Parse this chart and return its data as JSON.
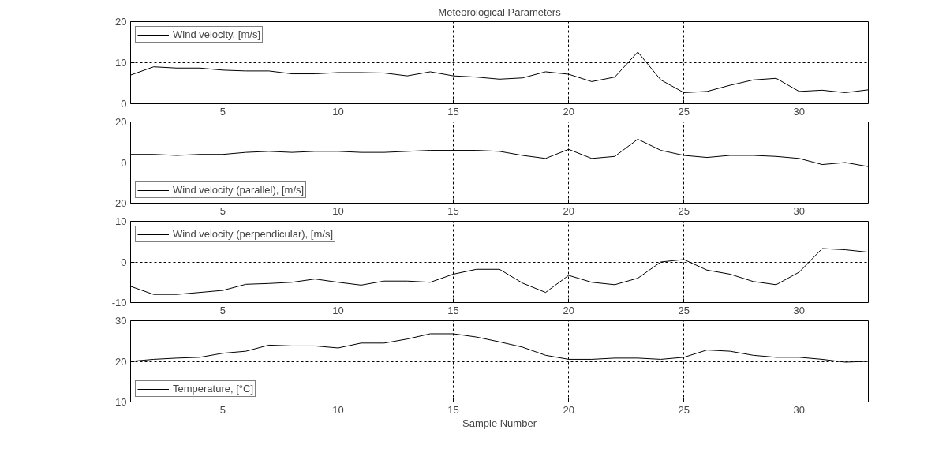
{
  "chart_data": [
    {
      "type": "line",
      "title": "Meteorological Parameters",
      "x": [
        1,
        2,
        3,
        4,
        5,
        6,
        7,
        8,
        9,
        10,
        11,
        12,
        13,
        14,
        15,
        16,
        17,
        18,
        19,
        20,
        21,
        22,
        23,
        24,
        25,
        26,
        27,
        28,
        29,
        30,
        31,
        32,
        33
      ],
      "xlim": [
        1,
        33
      ],
      "xticks": [
        5,
        10,
        15,
        20,
        25,
        30
      ],
      "ylim": [
        0,
        20
      ],
      "yticks": [
        0,
        10,
        20
      ],
      "grid": true,
      "legend": "top left",
      "series": [
        {
          "name": "Wind velocity, [m/s]",
          "color": "#000000",
          "values": [
            7,
            9,
            8.7,
            8.7,
            8.2,
            8,
            8,
            7.3,
            7.3,
            7.6,
            7.6,
            7.5,
            6.8,
            7.8,
            6.8,
            6.5,
            6,
            6.3,
            7.8,
            7.2,
            5.4,
            6.5,
            12.6,
            5.8,
            2.7,
            3,
            4.5,
            5.8,
            6.2,
            3,
            3.3,
            2.7,
            3.4
          ]
        }
      ]
    },
    {
      "type": "line",
      "x": [
        1,
        2,
        3,
        4,
        5,
        6,
        7,
        8,
        9,
        10,
        11,
        12,
        13,
        14,
        15,
        16,
        17,
        18,
        19,
        20,
        21,
        22,
        23,
        24,
        25,
        26,
        27,
        28,
        29,
        30,
        31,
        32,
        33
      ],
      "xlim": [
        1,
        33
      ],
      "xticks": [
        5,
        10,
        15,
        20,
        25,
        30
      ],
      "ylim": [
        -20,
        20
      ],
      "yticks": [
        -20,
        0,
        20
      ],
      "grid": true,
      "legend": "bottom left",
      "series": [
        {
          "name": "Wind velocity (parallel), [m/s]",
          "color": "#000000",
          "values": [
            4,
            4,
            3.5,
            4,
            4,
            5,
            5.5,
            5,
            5.5,
            5.5,
            5,
            5,
            5.5,
            6,
            6,
            6,
            5.5,
            3.5,
            2,
            6.5,
            2,
            3,
            11.5,
            6,
            3.5,
            2.5,
            3.5,
            3.5,
            3,
            2,
            -1,
            0,
            -2
          ]
        }
      ]
    },
    {
      "type": "line",
      "x": [
        1,
        2,
        3,
        4,
        5,
        6,
        7,
        8,
        9,
        10,
        11,
        12,
        13,
        14,
        15,
        16,
        17,
        18,
        19,
        20,
        21,
        22,
        23,
        24,
        25,
        26,
        27,
        28,
        29,
        30,
        31,
        32,
        33
      ],
      "xlim": [
        1,
        33
      ],
      "xticks": [
        5,
        10,
        15,
        20,
        25,
        30
      ],
      "ylim": [
        -10,
        10
      ],
      "yticks": [
        -10,
        0,
        10
      ],
      "grid": true,
      "legend": "top left",
      "series": [
        {
          "name": "Wind velocity (perpendicular), [m/s]",
          "color": "#000000",
          "values": [
            -6,
            -8,
            -8,
            -7.5,
            -7,
            -5.5,
            -5.3,
            -5,
            -4.2,
            -5,
            -5.7,
            -4.7,
            -4.7,
            -5,
            -3,
            -1.8,
            -1.8,
            -5.2,
            -7.5,
            -3.3,
            -5,
            -5.6,
            -4,
            0,
            0.6,
            -2,
            -3,
            -4.8,
            -5.6,
            -2.5,
            3.3,
            3,
            2.4
          ]
        }
      ]
    },
    {
      "type": "line",
      "xlabel": "Sample Number",
      "x": [
        1,
        2,
        3,
        4,
        5,
        6,
        7,
        8,
        9,
        10,
        11,
        12,
        13,
        14,
        15,
        16,
        17,
        18,
        19,
        20,
        21,
        22,
        23,
        24,
        25,
        26,
        27,
        28,
        29,
        30,
        31,
        32,
        33
      ],
      "xlim": [
        1,
        33
      ],
      "xticks": [
        5,
        10,
        15,
        20,
        25,
        30
      ],
      "ylim": [
        10,
        30
      ],
      "yticks": [
        10,
        20,
        30
      ],
      "grid": true,
      "legend": "bottom left",
      "series": [
        {
          "name": "Temperature, [°C]",
          "color": "#000000",
          "values": [
            20,
            20.5,
            20.8,
            21,
            22,
            22.5,
            24,
            23.8,
            23.8,
            23.3,
            24.5,
            24.5,
            25.5,
            26.8,
            26.8,
            26,
            24.8,
            23.5,
            21.5,
            20.5,
            20.5,
            20.8,
            20.8,
            20.5,
            21,
            22.8,
            22.5,
            21.5,
            21,
            21,
            20.5,
            19.8,
            20
          ]
        }
      ]
    }
  ]
}
